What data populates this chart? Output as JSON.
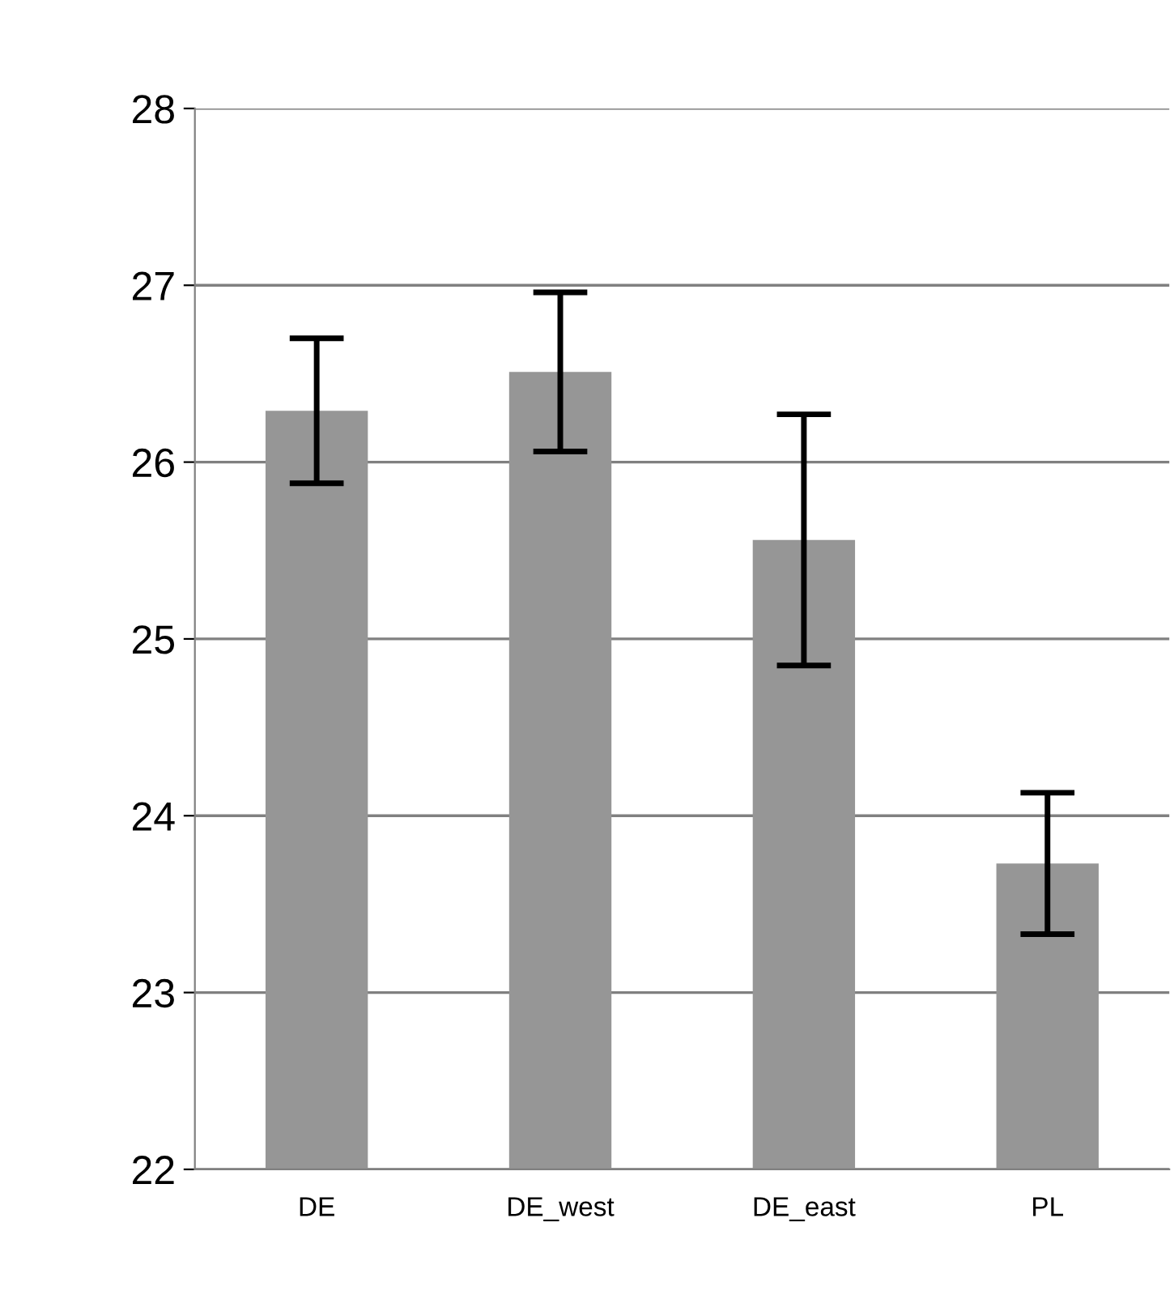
{
  "chart_data": {
    "type": "bar",
    "categories": [
      "DE",
      "DE_west",
      "DE_east",
      "PL"
    ],
    "values": [
      26.29,
      26.51,
      25.56,
      23.73
    ],
    "errors": [
      0.41,
      0.45,
      0.71,
      0.4
    ],
    "color": "#969696",
    "ylim": [
      22,
      28
    ],
    "yticks": [
      22,
      23,
      24,
      25,
      26,
      27,
      28
    ],
    "grid": "y"
  }
}
